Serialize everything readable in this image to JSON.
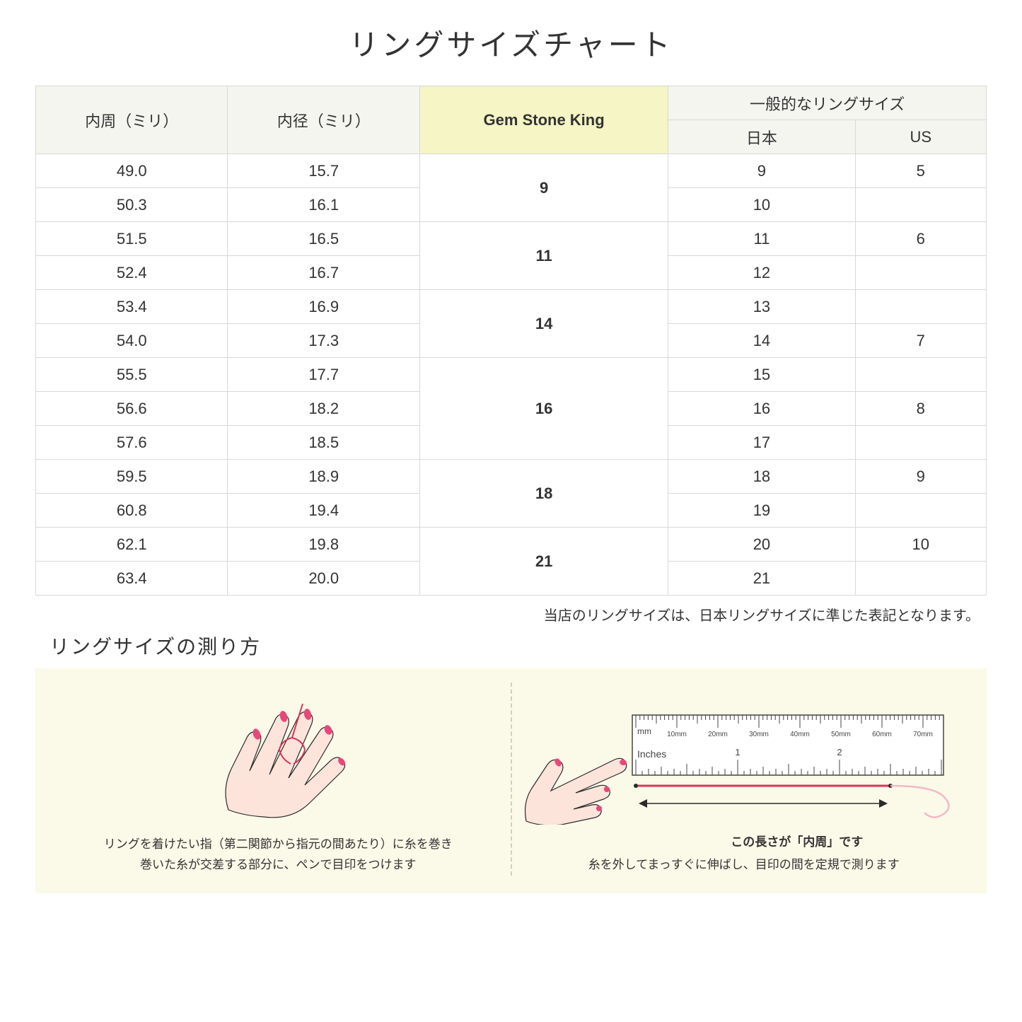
{
  "title": "リングサイズチャート",
  "headers": {
    "circumference": "内周（ミリ）",
    "diameter": "内径（ミリ）",
    "gsk": "Gem Stone King",
    "general": "一般的なリングサイズ",
    "japan": "日本",
    "us": "US"
  },
  "rows": [
    {
      "circ": "49.0",
      "dia": "15.7",
      "gsk": "9",
      "gsk_span": 2,
      "jp": "9",
      "us": "5"
    },
    {
      "circ": "50.3",
      "dia": "16.1",
      "jp": "10",
      "us": ""
    },
    {
      "circ": "51.5",
      "dia": "16.5",
      "gsk": "11",
      "gsk_span": 2,
      "jp": "11",
      "us": "6"
    },
    {
      "circ": "52.4",
      "dia": "16.7",
      "jp": "12",
      "us": ""
    },
    {
      "circ": "53.4",
      "dia": "16.9",
      "gsk": "14",
      "gsk_span": 2,
      "jp": "13",
      "us": ""
    },
    {
      "circ": "54.0",
      "dia": "17.3",
      "jp": "14",
      "us": "7"
    },
    {
      "circ": "55.5",
      "dia": "17.7",
      "gsk": "16",
      "gsk_span": 3,
      "jp": "15",
      "us": ""
    },
    {
      "circ": "56.6",
      "dia": "18.2",
      "jp": "16",
      "us": "8"
    },
    {
      "circ": "57.6",
      "dia": "18.5",
      "jp": "17",
      "us": ""
    },
    {
      "circ": "59.5",
      "dia": "18.9",
      "gsk": "18",
      "gsk_span": 2,
      "jp": "18",
      "us": "9"
    },
    {
      "circ": "60.8",
      "dia": "19.4",
      "jp": "19",
      "us": ""
    },
    {
      "circ": "62.1",
      "dia": "19.8",
      "gsk": "21",
      "gsk_span": 2,
      "jp": "20",
      "us": "10"
    },
    {
      "circ": "63.4",
      "dia": "20.0",
      "jp": "21",
      "us": ""
    }
  ],
  "note": "当店のリングサイズは、日本リングサイズに準じた表記となります。",
  "subtitle": "リングサイズの測り方",
  "instruction1": "リングを着けたい指（第二関節から指元の間あたり）に糸を巻き\n巻いた糸が交差する部分に、ペンで目印をつけます",
  "instruction2": "糸を外してまっすぐに伸ばし、目印の間を定規で測ります",
  "arrow_label": "この長さが「内周」です",
  "ruler": {
    "mm_label": "mm",
    "inches_label": "Inches",
    "mm_marks": [
      "10mm",
      "20mm",
      "30mm",
      "40mm",
      "50mm",
      "60mm",
      "70mm"
    ],
    "inch_marks": [
      "1",
      "2"
    ]
  },
  "colors": {
    "header_bg": "#f5f5f0",
    "highlight_bg": "#f5f5c5",
    "border": "#d8d8d8",
    "instruction_bg": "#fbf9e8",
    "hand_fill": "#fce4db",
    "hand_stroke": "#2a2a2a",
    "nail": "#e8477a",
    "thread": "#d6355a",
    "ruler_stroke": "#444444"
  }
}
